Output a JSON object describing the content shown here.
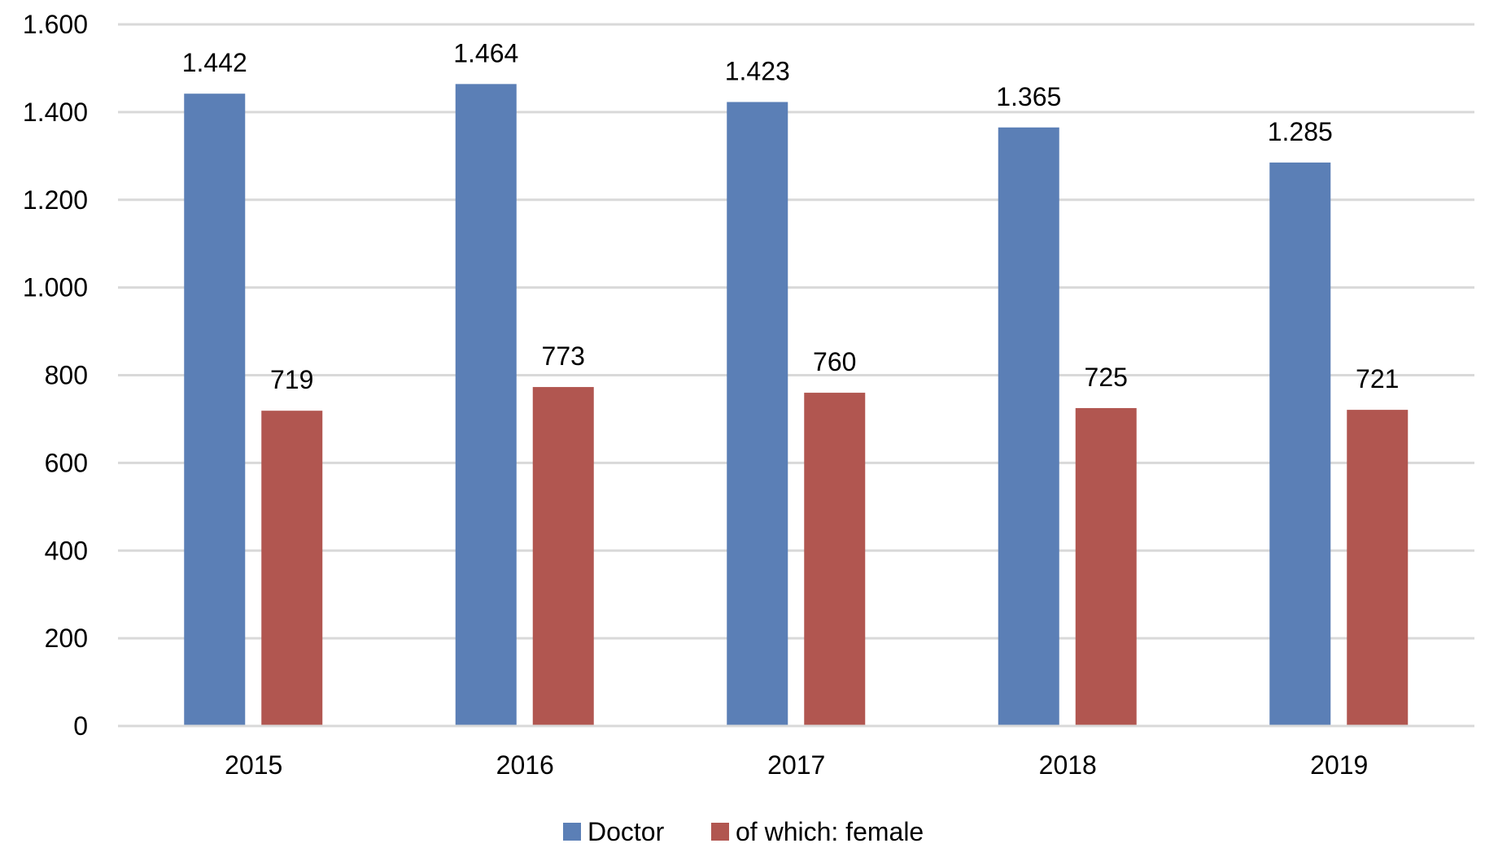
{
  "chart_data": {
    "type": "bar",
    "title": "",
    "xlabel": "",
    "ylabel": "",
    "categories": [
      "2015",
      "2016",
      "2017",
      "2018",
      "2019"
    ],
    "series": [
      {
        "name": "Doctor",
        "color": "#5b7fb6",
        "values": [
          1442,
          1464,
          1423,
          1365,
          1285
        ],
        "labels": [
          "1.442",
          "1.464",
          "1.423",
          "1.365",
          "1.285"
        ]
      },
      {
        "name": "of which: female",
        "color": "#b15650",
        "values": [
          719,
          773,
          760,
          725,
          721
        ],
        "labels": [
          "719",
          "773",
          "760",
          "725",
          "721"
        ]
      }
    ],
    "ylim": [
      0,
      1600
    ],
    "yticks": [
      0,
      200,
      400,
      600,
      800,
      1000,
      1200,
      1400,
      1600
    ],
    "ytick_labels": [
      "0",
      "200",
      "400",
      "600",
      "800",
      "1.000",
      "1.200",
      "1.400",
      "1.600"
    ],
    "grid": true,
    "legend_position": "bottom"
  }
}
